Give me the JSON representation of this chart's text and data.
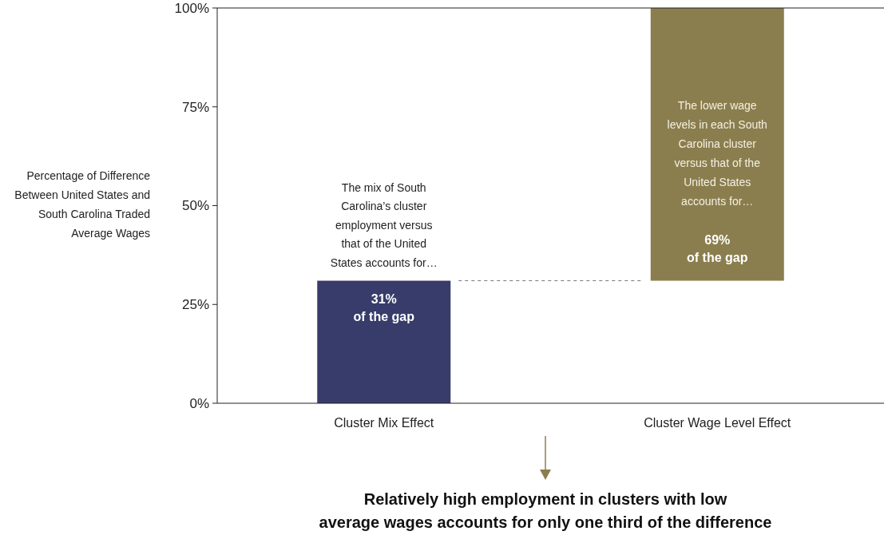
{
  "chart_data": {
    "type": "bar",
    "categories": [
      "Cluster Mix Effect",
      "Cluster Wage Level Effect"
    ],
    "values": [
      31,
      69
    ],
    "base": [
      0,
      31
    ],
    "colors": [
      "#373c6b",
      "#8b7e4e"
    ],
    "value_labels": [
      "31%\nof the gap",
      "69%\nof the gap"
    ],
    "ylabel": "Percentage of Difference\nBetween United States and\nSouth Carolina Traded\nAverage Wages",
    "ylim": [
      0,
      100
    ],
    "yticks": [
      {
        "value": 0,
        "label": "0%"
      },
      {
        "value": 25,
        "label": "25%"
      },
      {
        "value": 50,
        "label": "50%"
      },
      {
        "value": 75,
        "label": "75%"
      },
      {
        "value": 100,
        "label": "100%"
      }
    ],
    "ref_lines": [
      {
        "axis": "y",
        "value": 31,
        "color": "#777777",
        "line_style": "dashed"
      }
    ],
    "annotations": [
      "The mix of South\nCarolina’s cluster\nemployment versus\nthat of the United\nStates accounts for…",
      "The lower wage\nlevels in each South\nCarolina cluster\nversus that of the\nUnited States\naccounts for…",
      "Relatively high employment in clusters with low\naverage wages accounts for only one third of the difference"
    ],
    "grid": false
  }
}
